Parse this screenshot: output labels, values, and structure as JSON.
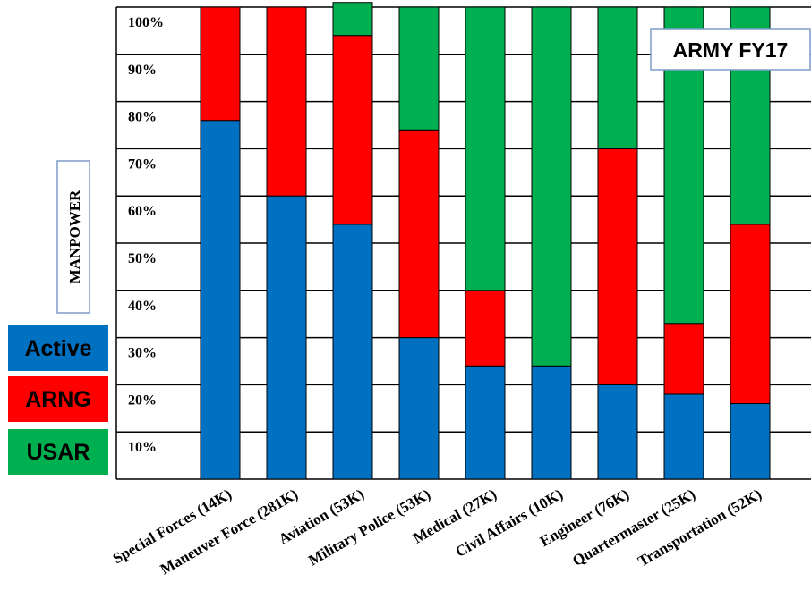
{
  "chart_data": {
    "type": "bar",
    "stacked": true,
    "title": "ARMY FY17",
    "ylabel": "MANPOWER",
    "xlabel": "",
    "ylim": [
      0,
      100
    ],
    "yticks": [
      "10%",
      "20%",
      "30%",
      "40%",
      "50%",
      "60%",
      "70%",
      "80%",
      "90%",
      "100%"
    ],
    "categories": [
      "Special Forces (14K)",
      "Maneuver Force (281K)",
      "Aviation (53K)",
      "Military Police (53K)",
      "Medical (27K)",
      "Civil Affairs (10K)",
      "Engineer (76K)",
      "Quartermaster (25K)",
      "Transportation (52K)"
    ],
    "series": [
      {
        "name": "Active",
        "color": "#0070C0",
        "values": [
          76,
          60,
          54,
          30,
          24,
          24,
          20,
          18,
          16
        ]
      },
      {
        "name": "ARNG",
        "color": "#FF0000",
        "values": [
          24,
          40,
          40,
          44,
          16,
          0,
          50,
          15,
          38
        ]
      },
      {
        "name": "USAR",
        "color": "#00B050",
        "values": [
          0,
          0,
          7,
          26,
          60,
          76,
          30,
          67,
          46
        ]
      }
    ],
    "grid": true,
    "legend_position": "left"
  }
}
